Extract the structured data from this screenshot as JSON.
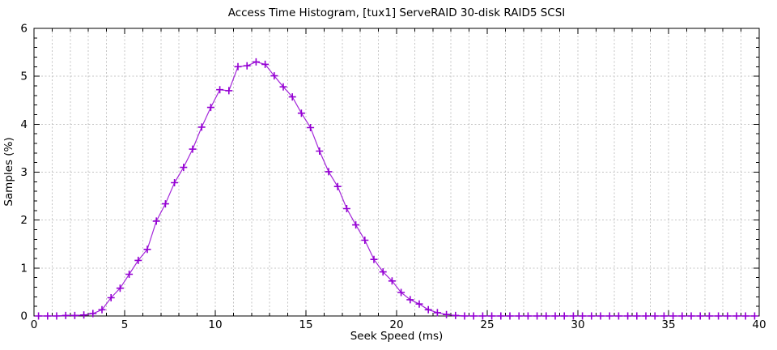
{
  "chart_data": {
    "type": "line",
    "title": "Access Time Histogram, [tux1] ServeRAID 30-disk RAID5 SCSI",
    "xlabel": "Seek Speed (ms)",
    "ylabel": "Samples (%)",
    "xlim": [
      0,
      40
    ],
    "ylim": [
      0,
      6
    ],
    "x_major_ticks": [
      0,
      5,
      10,
      15,
      20,
      25,
      30,
      35,
      40
    ],
    "x_minor_step": 1,
    "y_major_ticks": [
      0,
      1,
      2,
      3,
      4,
      5,
      6
    ],
    "y_minor_step": 0.2,
    "grid": true,
    "legend_position": "none",
    "marker": "plus",
    "line_color": "#9400d3",
    "grid_color": "#c4c4c4",
    "axis_color": "#000000",
    "series": [
      {
        "name": "samples",
        "x": [
          0.25,
          0.75,
          1.25,
          1.75,
          2.25,
          2.75,
          3.25,
          3.75,
          4.25,
          4.75,
          5.25,
          5.75,
          6.25,
          6.75,
          7.25,
          7.75,
          8.25,
          8.75,
          9.25,
          9.75,
          10.25,
          10.75,
          11.25,
          11.75,
          12.25,
          12.75,
          13.25,
          13.75,
          14.25,
          14.75,
          15.25,
          15.75,
          16.25,
          16.75,
          17.25,
          17.75,
          18.25,
          18.75,
          19.25,
          19.75,
          20.25,
          20.75,
          21.25,
          21.75,
          22.25,
          22.75,
          23.25,
          23.75,
          24.25,
          24.75,
          25.25,
          25.75,
          26.25,
          26.75,
          27.25,
          27.75,
          28.25,
          28.75,
          29.25,
          29.75,
          30.25,
          30.75,
          31.25,
          31.75,
          32.25,
          32.75,
          33.25,
          33.75,
          34.25,
          34.75,
          35.25,
          35.75,
          36.25,
          36.75,
          37.25,
          37.75,
          38.25,
          38.75,
          39.25,
          39.75
        ],
        "y": [
          0,
          0,
          0,
          0.01,
          0.01,
          0.02,
          0.05,
          0.13,
          0.38,
          0.58,
          0.87,
          1.16,
          1.39,
          1.98,
          2.34,
          2.78,
          3.1,
          3.48,
          3.94,
          4.35,
          4.72,
          4.7,
          5.2,
          5.22,
          5.3,
          5.25,
          5.01,
          4.78,
          4.57,
          4.23,
          3.93,
          3.44,
          3.01,
          2.7,
          2.24,
          1.9,
          1.58,
          1.18,
          0.92,
          0.73,
          0.49,
          0.34,
          0.25,
          0.13,
          0.07,
          0.03,
          0.01,
          0,
          0,
          0,
          0,
          0,
          0,
          0,
          0,
          0,
          0,
          0,
          0,
          0,
          0,
          0,
          0,
          0,
          0,
          0,
          0,
          0,
          0,
          0,
          0,
          0,
          0,
          0,
          0,
          0,
          0,
          0,
          0,
          0
        ]
      }
    ]
  }
}
